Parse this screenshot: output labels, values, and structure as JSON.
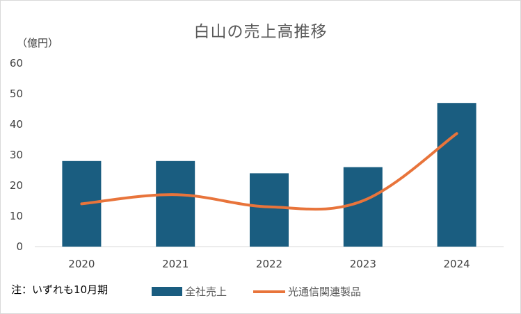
{
  "chart_data": {
    "type": "bar",
    "title": "白山の売上高推移",
    "ylabel": "（億円）",
    "categories": [
      "2020",
      "2021",
      "2022",
      "2023",
      "2024"
    ],
    "ylim": [
      0,
      60
    ],
    "yticks": [
      "0",
      "10",
      "20",
      "30",
      "40",
      "50",
      "60"
    ],
    "grid": false,
    "legend_position": "bottom",
    "series": [
      {
        "name": "全社売上",
        "type": "bar",
        "color": "#1a5d80",
        "values": [
          28,
          28,
          24,
          26,
          47
        ]
      },
      {
        "name": "光通信関連製品",
        "type": "line",
        "color": "#e8743b",
        "values": [
          14,
          17,
          13,
          15,
          37
        ]
      }
    ],
    "note": "注：いずれも10月期"
  }
}
